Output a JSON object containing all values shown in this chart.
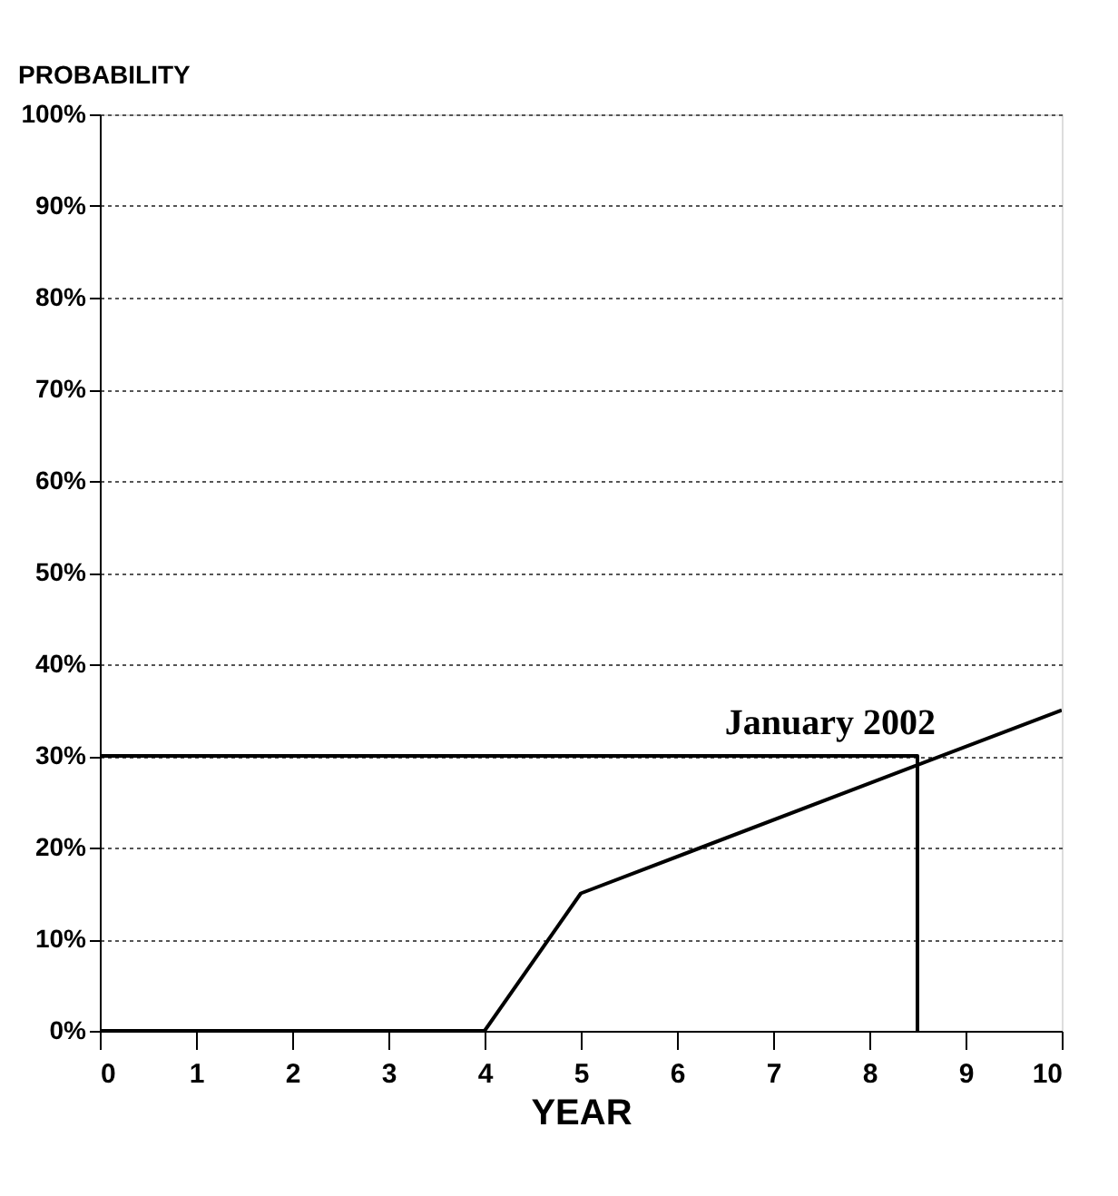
{
  "chart_data": {
    "type": "line",
    "xlabel": "YEAR",
    "ylabel": "PROBABILITY",
    "series": [
      {
        "x": [
          0,
          4,
          5,
          10
        ],
        "values": [
          0,
          0,
          15,
          35
        ],
        "color": "#000000"
      },
      {
        "x": [
          0,
          8.5,
          8.5
        ],
        "values": [
          30,
          30,
          0
        ],
        "color": "#000000"
      }
    ],
    "xlim": [
      0,
      10
    ],
    "xticks": [
      0,
      1,
      2,
      3,
      4,
      5,
      6,
      7,
      8,
      9,
      10
    ],
    "ylim": [
      0,
      100
    ],
    "yticks": [
      {
        "value": 0,
        "label": "0%"
      },
      {
        "value": 10,
        "label": "10%"
      },
      {
        "value": 20,
        "label": "20%"
      },
      {
        "value": 30,
        "label": "30%"
      },
      {
        "value": 40,
        "label": "40%"
      },
      {
        "value": 50,
        "label": "50%"
      },
      {
        "value": 60,
        "label": "60%"
      },
      {
        "value": 70,
        "label": "70%"
      },
      {
        "value": 80,
        "label": "80%"
      },
      {
        "value": 90,
        "label": "90%"
      },
      {
        "value": 100,
        "label": "100%"
      }
    ],
    "grid": "y",
    "line_style": "solid",
    "marker": "none",
    "annotations": [
      {
        "text": "January 2002",
        "x": 8.5,
        "y": 30
      }
    ]
  }
}
